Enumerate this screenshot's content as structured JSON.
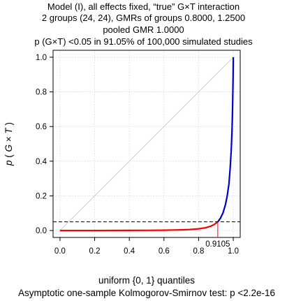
{
  "chart_data": {
    "type": "line",
    "title_lines": [
      "Model (I), all effects fixed, “true” G×T interaction",
      "2 groups (24, 24), GMRs of groups 0.8000, 1.2500",
      "pooled GMR 1.0000",
      "p (G×T) <0.05 in 91.05% of 100,000 simulated studies"
    ],
    "xlabel": "uniform {0, 1} quantiles",
    "ylabel_parts": [
      "p",
      "(",
      "G",
      "×",
      "T",
      ")"
    ],
    "footnote": "Asymptotic one-sample Kolmogorov-Smirnov test: p <2.2e-16",
    "xlim": [
      0,
      1
    ],
    "ylim": [
      0,
      1
    ],
    "x_ticks": [
      "0.0",
      "0.2",
      "0.4",
      "0.6",
      "0.8",
      "1.0"
    ],
    "y_ticks": [
      "0.0",
      "0.2",
      "0.4",
      "0.6",
      "0.8",
      "1.0"
    ],
    "significance_level": 0.05,
    "crossing_quantile": 0.9105,
    "crossing_label": "0.9105",
    "series": [
      {
        "color": "#ff0000",
        "x": [
          0.0,
          0.1,
          0.2,
          0.3,
          0.4,
          0.5,
          0.6,
          0.7,
          0.75,
          0.8,
          0.84,
          0.87,
          0.89,
          0.9105
        ],
        "y": [
          0.0,
          0.0,
          0.0,
          0.0002,
          0.0005,
          0.001,
          0.002,
          0.004,
          0.006,
          0.01,
          0.016,
          0.025,
          0.035,
          0.05
        ]
      },
      {
        "color": "#0000cc",
        "x": [
          0.9105,
          0.925,
          0.94,
          0.955,
          0.965,
          0.975,
          0.982,
          0.988,
          0.992,
          0.995,
          0.997,
          0.999,
          1.0
        ],
        "y": [
          0.05,
          0.07,
          0.1,
          0.15,
          0.2,
          0.27,
          0.36,
          0.46,
          0.56,
          0.66,
          0.76,
          0.88,
          1.0
        ]
      }
    ],
    "reference_line": {
      "color": "#cccccc",
      "x": [
        0,
        1
      ],
      "y": [
        0,
        1
      ]
    },
    "grid": true
  }
}
